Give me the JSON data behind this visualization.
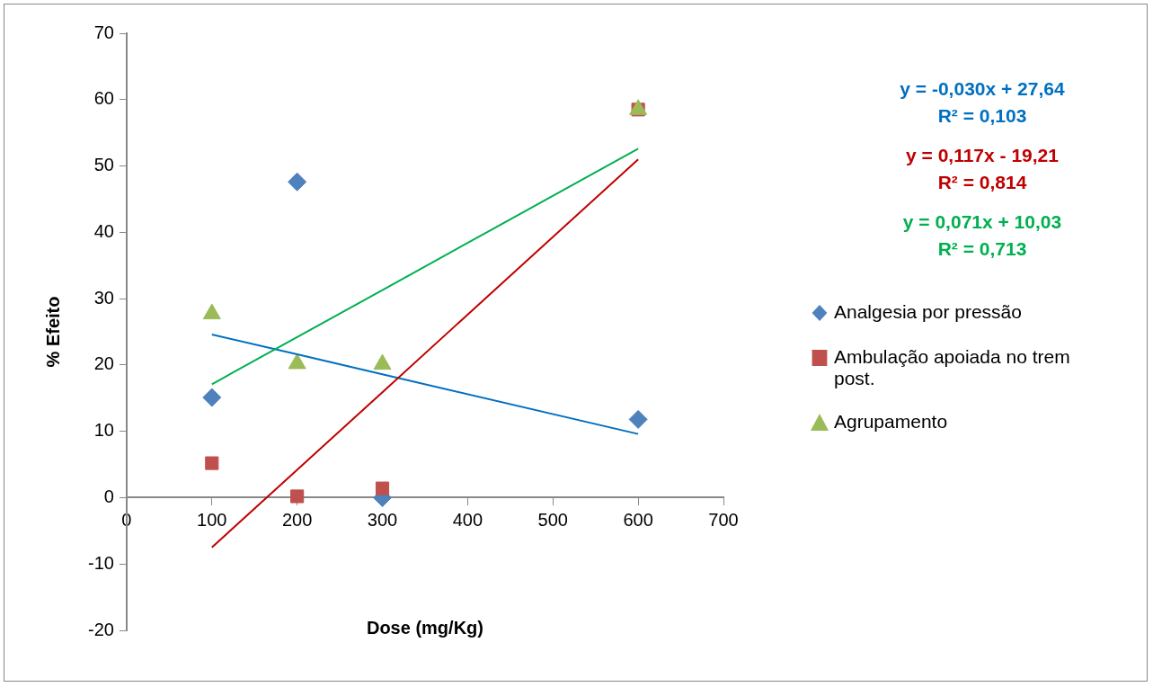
{
  "chart_data": {
    "type": "scatter",
    "xlabel": "Dose (mg/Kg)",
    "ylabel": "% Efeito",
    "xlim": [
      0,
      700
    ],
    "xticks": [
      0,
      100,
      200,
      300,
      400,
      500,
      600,
      700
    ],
    "ylim": [
      -20,
      70
    ],
    "yticks": [
      -20,
      -10,
      0,
      10,
      20,
      30,
      40,
      50,
      60,
      70
    ],
    "grid": false,
    "legend": "right",
    "x": [
      100,
      200,
      300,
      600
    ],
    "series": [
      {
        "name": "Analgesia por pressão",
        "color": "#4f81bd",
        "marker": "diamond",
        "values": [
          15.1,
          47.6,
          0,
          11.8
        ]
      },
      {
        "name": "Ambulação apoiada no trem post.",
        "color": "#c0504d",
        "marker": "square",
        "values": [
          5.2,
          0.2,
          1.4,
          58.5
        ]
      },
      {
        "name": "Agrupamento",
        "color": "#9bbb59",
        "marker": "triangle",
        "values": [
          27.7,
          20.2,
          20.1,
          58.5
        ]
      },
      {
        "type": "line",
        "color": "#0070c0",
        "marker": "none",
        "values": [
          24.6,
          21.6,
          18.6,
          9.6
        ]
      },
      {
        "type": "line",
        "color": "#c00000",
        "marker": "none",
        "values": [
          -7.5,
          4.2,
          15.9,
          51.0
        ]
      },
      {
        "type": "line",
        "color": "#00b050",
        "marker": "none",
        "values": [
          17.1,
          24.2,
          31.3,
          52.6
        ]
      }
    ],
    "annotations": [
      "y = -0,030x + 27,64",
      "R² = 0,103",
      "y = 0,117x - 19,21",
      "R² = 0,814",
      "y = 0,071x + 10,03",
      "R² = 0,713"
    ]
  }
}
